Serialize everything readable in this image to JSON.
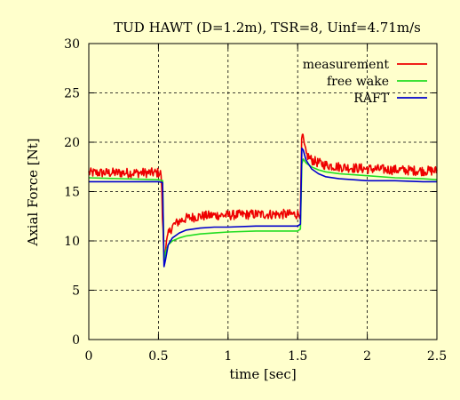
{
  "chart_data": {
    "type": "line",
    "title": "TUD HAWT (D=1.2m), TSR=8, Uinf=4.71m/s",
    "xlabel": "time [sec]",
    "ylabel": "Axial Force [Nt]",
    "xlim": [
      0,
      2.5
    ],
    "ylim": [
      0,
      30
    ],
    "xticks": [
      0,
      0.5,
      1,
      1.5,
      2,
      2.5
    ],
    "xtick_labels": [
      "0",
      "0.5",
      "1",
      "1.5",
      "2",
      "2.5"
    ],
    "yticks": [
      0,
      5,
      10,
      15,
      20,
      25,
      30
    ],
    "ytick_labels": [
      "0",
      "5",
      "10",
      "15",
      "20",
      "25",
      "30"
    ],
    "grid": true,
    "legend_position": "top-right",
    "series": [
      {
        "name": "measurement",
        "color": "#ee0000",
        "noise": 0.45,
        "x": [
          0,
          0.5,
          0.52,
          0.53,
          0.54,
          0.55,
          0.57,
          0.6,
          0.65,
          0.7,
          0.8,
          0.9,
          1.0,
          1.2,
          1.4,
          1.5,
          1.52,
          1.53,
          1.54,
          1.56,
          1.6,
          1.65,
          1.7,
          1.8,
          1.9,
          2.0,
          2.2,
          2.4,
          2.5
        ],
        "y": [
          16.9,
          16.9,
          16.8,
          12.0,
          8.5,
          9.2,
          10.6,
          11.5,
          12.0,
          12.3,
          12.5,
          12.6,
          12.6,
          12.7,
          12.7,
          12.7,
          12.8,
          21.0,
          20.2,
          18.8,
          18.2,
          17.9,
          17.7,
          17.5,
          17.4,
          17.3,
          17.2,
          17.1,
          17.1
        ]
      },
      {
        "name": "free wake",
        "color": "#22dd22",
        "x": [
          0,
          0.5,
          0.53,
          0.54,
          0.55,
          0.57,
          0.6,
          0.65,
          0.7,
          0.8,
          0.9,
          1.0,
          1.2,
          1.4,
          1.5,
          1.52,
          1.53,
          1.54,
          1.56,
          1.6,
          1.65,
          1.7,
          1.8,
          1.9,
          2.0,
          2.2,
          2.4,
          2.5
        ],
        "y": [
          16.4,
          16.2,
          16.1,
          8.0,
          8.8,
          9.6,
          10.0,
          10.3,
          10.5,
          10.7,
          10.8,
          10.9,
          11.0,
          11.0,
          11.0,
          11.2,
          17.8,
          18.3,
          17.9,
          17.5,
          17.2,
          17.0,
          16.8,
          16.7,
          16.6,
          16.4,
          16.3,
          16.2
        ]
      },
      {
        "name": "RAFT",
        "color": "#0000cc",
        "x": [
          0,
          0.5,
          0.53,
          0.54,
          0.55,
          0.57,
          0.6,
          0.65,
          0.7,
          0.8,
          0.9,
          1.0,
          1.2,
          1.4,
          1.5,
          1.52,
          1.53,
          1.54,
          1.56,
          1.6,
          1.65,
          1.7,
          1.8,
          1.9,
          2.0,
          2.2,
          2.4,
          2.5
        ],
        "y": [
          16.0,
          16.0,
          15.9,
          7.4,
          8.0,
          9.6,
          10.3,
          10.8,
          11.1,
          11.3,
          11.4,
          11.4,
          11.5,
          11.5,
          11.5,
          11.7,
          19.4,
          19.2,
          18.2,
          17.3,
          16.8,
          16.5,
          16.3,
          16.2,
          16.1,
          16.1,
          16.0,
          16.0
        ]
      }
    ]
  }
}
